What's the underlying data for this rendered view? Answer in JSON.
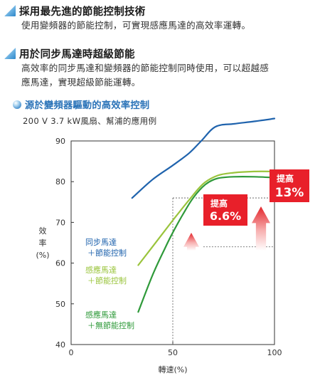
{
  "sections": [
    {
      "title": "採用最先進的節能控制技術",
      "lines": [
        "使用變頻器的節能控制，可實現感應馬達的高效率運轉。"
      ]
    },
    {
      "title": "用於同步馬達時超級節能",
      "lines": [
        "高效率的同步馬達和變頻器的節能控制同時使用，可以超越感",
        "應馬達，實現超級節能運轉。"
      ]
    }
  ],
  "subheading": "源於變頻器驅動的高效率控制",
  "caption": "200 V  3.7 kW風扇、幫浦的應用例",
  "colors": {
    "sync": "#1f63ad",
    "induction_ctrl": "#9ac43c",
    "induction_noctrl": "#2f9a3a",
    "arrow": "#e8202a"
  },
  "chart_data": {
    "type": "line",
    "ylabel": "效\n率\n(%)",
    "xlabel": "轉速(%)",
    "xlim": [
      0,
      100
    ],
    "ylim": [
      40,
      90
    ],
    "xticks": [
      0,
      50,
      100
    ],
    "yticks": [
      40,
      50,
      60,
      70,
      80,
      90
    ],
    "series": [
      {
        "name": "同步馬達\n＋節能控制",
        "color": "#1f63ad",
        "points": [
          [
            30,
            76
          ],
          [
            40,
            80.5
          ],
          [
            50,
            84
          ],
          [
            58,
            87
          ],
          [
            64,
            90
          ],
          [
            71,
            93.5
          ],
          [
            80,
            94.2
          ],
          [
            90,
            94.8
          ],
          [
            100,
            95.5
          ]
        ]
      },
      {
        "name": "感應馬達\n＋節能控制",
        "color": "#9ac43c",
        "points": [
          [
            33,
            59.5
          ],
          [
            40,
            64
          ],
          [
            50,
            70.5
          ],
          [
            58,
            75.5
          ],
          [
            65,
            79.5
          ],
          [
            72,
            81.5
          ],
          [
            80,
            82.2
          ],
          [
            90,
            82.5
          ],
          [
            100,
            82.5
          ]
        ]
      },
      {
        "name": "感應馬達\n＋無節能控制",
        "color": "#2f9a3a",
        "points": [
          [
            33,
            48
          ],
          [
            40,
            57
          ],
          [
            46,
            63.5
          ],
          [
            50,
            67.5
          ],
          [
            55,
            72
          ],
          [
            60,
            76
          ],
          [
            66,
            79.3
          ],
          [
            72,
            80.8
          ],
          [
            80,
            81.2
          ],
          [
            90,
            81.2
          ],
          [
            100,
            81
          ]
        ]
      }
    ],
    "annotations": [
      {
        "label_top": "提高",
        "label_big": "6.6%",
        "value_from": 72,
        "value_to": 76
      },
      {
        "label_top": "提高",
        "label_big": "13%",
        "value_from": 64,
        "value_to": 76
      }
    ]
  }
}
